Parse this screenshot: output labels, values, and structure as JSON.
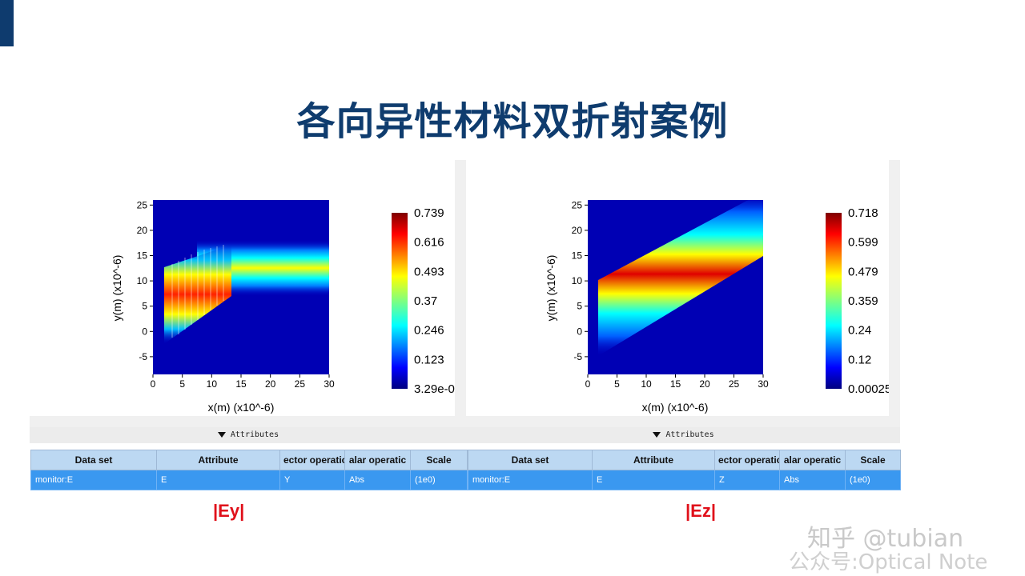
{
  "slide": {
    "title": "各向异性材料双折射案例"
  },
  "plots": [
    {
      "field": "|Ey|",
      "xlabel": "x(m) (x10^-6)",
      "ylabel": "y(m) (x10^-6)",
      "xticks": [
        "0",
        "5",
        "10",
        "15",
        "20",
        "25",
        "30"
      ],
      "yticks": [
        "25",
        "20",
        "15",
        "10",
        "5",
        "0",
        "-5"
      ],
      "colorbar_ticks": [
        "0.739",
        "0.616",
        "0.493",
        "0.37",
        "0.246",
        "0.123",
        "3.29e-0"
      ]
    },
    {
      "field": "|Ez|",
      "xlabel": "x(m) (x10^-6)",
      "ylabel": "y(m) (x10^-6)",
      "xticks": [
        "0",
        "5",
        "10",
        "15",
        "20",
        "25",
        "30"
      ],
      "yticks": [
        "25",
        "20",
        "15",
        "10",
        "5",
        "0",
        "-5"
      ],
      "colorbar_ticks": [
        "0.718",
        "0.599",
        "0.479",
        "0.359",
        "0.24",
        "0.12",
        "0.00025"
      ]
    }
  ],
  "attributes": {
    "toggle_label": "Attributes",
    "headers": [
      "Data set",
      "Attribute",
      "ector operatic",
      "alar operatic",
      "Scale"
    ],
    "rows": [
      [
        "monitor:E",
        "E",
        "Y",
        "Abs",
        "(1e0)"
      ],
      [
        "monitor:E",
        "E",
        "Z",
        "Abs",
        "(1e0)"
      ]
    ]
  },
  "captions": [
    "|Ey|",
    "|Ez|"
  ],
  "watermark": {
    "line1": "知乎 @tubian",
    "line2": "公众号:Optical Note"
  },
  "colors": {
    "title": "#0f3c6e",
    "caption": "#e0101a",
    "row_selected": "#3a98f0",
    "header": "#bcd8f2"
  }
}
